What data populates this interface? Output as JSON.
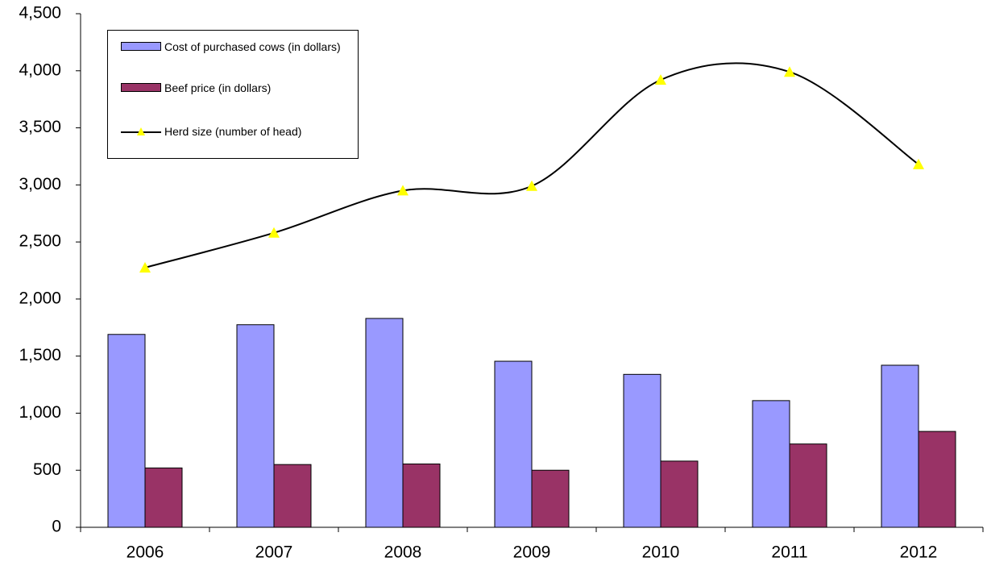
{
  "chart_data": {
    "type": "bar_line",
    "categories": [
      "2006",
      "2007",
      "2008",
      "2009",
      "2010",
      "2011",
      "2012"
    ],
    "series": [
      {
        "name": "Cost of purchased cows (in dollars)",
        "type": "bar",
        "color": "#9999ff",
        "values": [
          1690,
          1775,
          1830,
          1455,
          1340,
          1110,
          1420
        ]
      },
      {
        "name": "Beef price (in dollars)",
        "type": "bar",
        "color": "#993366",
        "values": [
          520,
          550,
          555,
          500,
          580,
          730,
          840
        ]
      },
      {
        "name": "Herd size (number of head)",
        "type": "line",
        "color": "#000000",
        "marker_color": "#ffff00",
        "values": [
          2275,
          2580,
          2950,
          2990,
          3920,
          3990,
          3180
        ]
      }
    ],
    "ylim": [
      0,
      4500
    ],
    "yticks": [
      0,
      500,
      {
        "value": 1000,
        "label": "1,000"
      },
      {
        "value": 1500,
        "label": "1,500"
      },
      {
        "value": 2000,
        "label": "2,000"
      },
      {
        "value": 2500,
        "label": "2,500"
      },
      {
        "value": 3000,
        "label": "3,000"
      },
      {
        "value": 3500,
        "label": "3,500"
      },
      {
        "value": 4000,
        "label": "4,000"
      },
      {
        "value": 4500,
        "label": "4,500"
      }
    ],
    "grid": false,
    "legend": "upper left"
  }
}
